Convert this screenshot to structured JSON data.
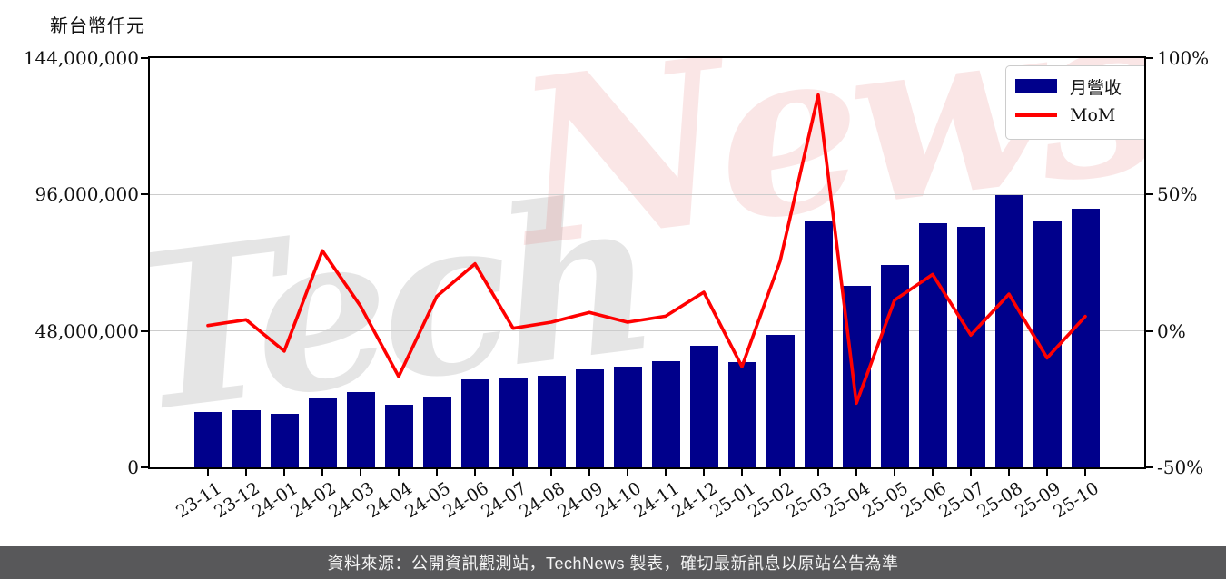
{
  "unit_label": "新台幣仟元",
  "watermark": {
    "part1": "Tech",
    "part2": "News"
  },
  "legend": {
    "bar_label": "月營收",
    "line_label": "MoM"
  },
  "footer_text": "資料來源：公開資訊觀測站，TechNews 製表，確切最新訊息以原站公告為準",
  "colors": {
    "bar": "#00008B",
    "line": "#FF0000",
    "grid": "#CCCCCC",
    "axis": "#000000",
    "footer_bg": "#58585A",
    "watermark_gray": "rgba(0,0,0,0.10)",
    "watermark_pink": "rgba(225,100,100,0.16)"
  },
  "chart_data": {
    "type": "bar+line",
    "categories": [
      "23-11",
      "23-12",
      "24-01",
      "24-02",
      "24-03",
      "24-04",
      "24-05",
      "24-06",
      "24-07",
      "24-08",
      "24-09",
      "24-10",
      "24-11",
      "24-12",
      "25-01",
      "25-02",
      "25-03",
      "25-04",
      "25-05",
      "25-06",
      "25-07",
      "25-08",
      "25-09",
      "25-10"
    ],
    "series": [
      {
        "name": "月營收",
        "type": "bar",
        "yaxis": "left",
        "unit": "新台幣仟元",
        "color": "#00008B",
        "values": [
          19400000,
          20200000,
          18700000,
          24200000,
          26400000,
          22000000,
          24800000,
          30900000,
          31200000,
          32200000,
          34400000,
          35500000,
          37400000,
          42700000,
          37100000,
          46600000,
          86900000,
          63900000,
          71100000,
          85800000,
          84500000,
          95900000,
          86400000,
          91000000
        ]
      },
      {
        "name": "MoM",
        "type": "line",
        "yaxis": "right",
        "unit": "percent",
        "color": "#FF0000",
        "values": [
          2.0,
          4.1,
          -7.4,
          29.4,
          9.1,
          -16.7,
          12.7,
          24.6,
          1.0,
          3.2,
          6.8,
          3.2,
          5.4,
          14.2,
          -13.1,
          25.6,
          86.5,
          -26.5,
          11.3,
          20.7,
          -1.5,
          13.5,
          -9.9,
          5.3
        ]
      }
    ],
    "left_axis": {
      "title": "新台幣仟元",
      "range": [
        0,
        144000000
      ],
      "ticks": [
        {
          "label": "0",
          "value": 0
        },
        {
          "label": "48,000,000",
          "value": 48000000
        },
        {
          "label": "96,000,000",
          "value": 96000000
        },
        {
          "label": "144,000,000",
          "value": 144000000
        }
      ]
    },
    "right_axis": {
      "range": [
        -50,
        100
      ],
      "ticks": [
        {
          "label": "-50%",
          "value": -50
        },
        {
          "label": "0%",
          "value": 0
        },
        {
          "label": "50%",
          "value": 50
        },
        {
          "label": "100%",
          "value": 100
        }
      ]
    },
    "grid": "horizontal",
    "legend_position": "upper-right"
  }
}
